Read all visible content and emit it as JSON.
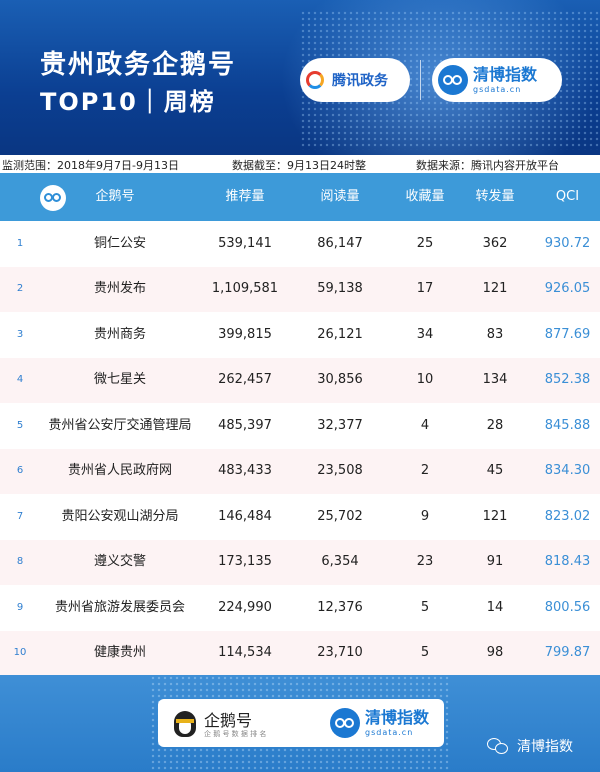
{
  "header": {
    "title_line1": "贵州政务企鹅号",
    "title_line2": "TOP10｜周榜",
    "logo_tencent": "腾讯政务",
    "logo_qingbo": "清博指数",
    "logo_qingbo_domain": "gsdata.cn"
  },
  "info": {
    "range": "监测范围：2018年9月7日-9月13日",
    "cutoff": "数据截至：9月13日24时整",
    "source": "数据来源：腾讯内容开放平台"
  },
  "table": {
    "columns": [
      "企鹅号",
      "推荐量",
      "阅读量",
      "收藏量",
      "转发量",
      "QCI"
    ],
    "rows": [
      {
        "rank": "1",
        "name": "铜仁公安",
        "rec": "539,141",
        "read": "86,147",
        "fav": "25",
        "fwd": "362",
        "qci": "930.72"
      },
      {
        "rank": "2",
        "name": "贵州发布",
        "rec": "1,109,581",
        "read": "59,138",
        "fav": "17",
        "fwd": "121",
        "qci": "926.05"
      },
      {
        "rank": "3",
        "name": "贵州商务",
        "rec": "399,815",
        "read": "26,121",
        "fav": "34",
        "fwd": "83",
        "qci": "877.69"
      },
      {
        "rank": "4",
        "name": "微七星关",
        "rec": "262,457",
        "read": "30,856",
        "fav": "10",
        "fwd": "134",
        "qci": "852.38"
      },
      {
        "rank": "5",
        "name": "贵州省公安厅交通管理局",
        "rec": "485,397",
        "read": "32,377",
        "fav": "4",
        "fwd": "28",
        "qci": "845.88"
      },
      {
        "rank": "6",
        "name": "贵州省人民政府网",
        "rec": "483,433",
        "read": "23,508",
        "fav": "2",
        "fwd": "45",
        "qci": "834.30"
      },
      {
        "rank": "7",
        "name": "贵阳公安观山湖分局",
        "rec": "146,484",
        "read": "25,702",
        "fav": "9",
        "fwd": "121",
        "qci": "823.02"
      },
      {
        "rank": "8",
        "name": "遵义交警",
        "rec": "173,135",
        "read": "6,354",
        "fav": "23",
        "fwd": "91",
        "qci": "818.43"
      },
      {
        "rank": "9",
        "name": "贵州省旅游发展委员会",
        "rec": "224,990",
        "read": "12,376",
        "fav": "5",
        "fwd": "14",
        "qci": "800.56"
      },
      {
        "rank": "10",
        "name": "健康贵州",
        "rec": "114,534",
        "read": "23,710",
        "fav": "5",
        "fwd": "98",
        "qci": "799.87"
      }
    ]
  },
  "footer": {
    "qie_label": "企鹅号",
    "qie_sub": "企 鹅 号 数 据 排 名",
    "qingbo_label": "清博指数",
    "qingbo_domain": "gsdata.cn",
    "wechat_label": "清博指数"
  }
}
